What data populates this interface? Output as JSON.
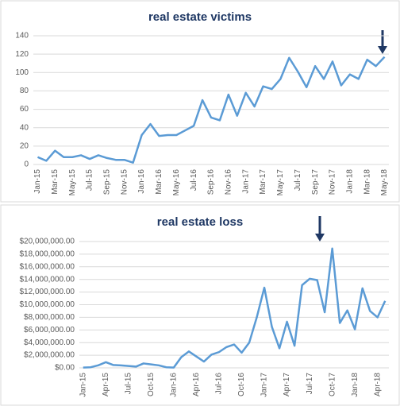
{
  "chart_data": [
    {
      "type": "line",
      "title": "real estate victims",
      "categories": [
        "Jan-15",
        null,
        "Mar-15",
        null,
        "May-15",
        null,
        "Jul-15",
        null,
        "Sep-15",
        null,
        "Nov-15",
        null,
        "Jan-16",
        null,
        "Mar-16",
        null,
        "May-16",
        null,
        "Jul-16",
        null,
        "Sep-16",
        null,
        "Nov-16",
        null,
        "Jan-17",
        null,
        "Mar-17",
        null,
        "May-17",
        null,
        "Jul-17",
        null,
        "Sep-17",
        null,
        "Nov-17",
        null,
        "Jan-18",
        null,
        "Mar-18",
        null,
        "May-18"
      ],
      "series": [
        {
          "name": "victims",
          "color": "#5b9bd5",
          "values": [
            8,
            4,
            15,
            8,
            8,
            10,
            6,
            10,
            7,
            5,
            5,
            2,
            32,
            44,
            31,
            32,
            32,
            37,
            42,
            70,
            51,
            48,
            76,
            53,
            78,
            63,
            85,
            82,
            93,
            116,
            101,
            84,
            107,
            93,
            112,
            86,
            98,
            93,
            114,
            107,
            117
          ]
        }
      ],
      "ylim": [
        0,
        140
      ],
      "yticks": [
        0,
        20,
        40,
        60,
        80,
        100,
        120,
        140
      ],
      "grid": true
    },
    {
      "type": "line",
      "title": "real estate loss",
      "categories": [
        "Jan-15",
        null,
        null,
        "Apr-15",
        null,
        null,
        "Jul-15",
        null,
        null,
        "Oct-15",
        null,
        null,
        "Jan-16",
        null,
        null,
        "Apr-16",
        null,
        null,
        "Jul-16",
        null,
        null,
        "Oct-16",
        null,
        null,
        "Jan-17",
        null,
        null,
        "Apr-17",
        null,
        null,
        "Jul-17",
        null,
        null,
        "Oct-17",
        null,
        null,
        "Jan-18",
        null,
        null,
        "Apr-18",
        null
      ],
      "series": [
        {
          "name": "loss",
          "color": "#5b9bd5",
          "values": [
            50000,
            100000,
            400000,
            900000,
            450000,
            400000,
            300000,
            200000,
            700000,
            550000,
            400000,
            100000,
            50000,
            1700000,
            2600000,
            1800000,
            1000000,
            2100000,
            2500000,
            3300000,
            3700000,
            2400000,
            4000000,
            8000000,
            12700000,
            6500000,
            3100000,
            7300000,
            3500000,
            13100000,
            14100000,
            13900000,
            8800000,
            18900000,
            7100000,
            9100000,
            6100000,
            12600000,
            9000000,
            8000000,
            10600000
          ]
        }
      ],
      "ylim": [
        0,
        20000000
      ],
      "yticks": [
        {
          "value": 0,
          "label": "$0.00"
        },
        {
          "value": 2000000,
          "label": "$2,000,000.00"
        },
        {
          "value": 4000000,
          "label": "$4,000,000.00"
        },
        {
          "value": 6000000,
          "label": "$6,000,000.00"
        },
        {
          "value": 8000000,
          "label": "$8,000,000.00"
        },
        {
          "value": 10000000,
          "label": "$10,000,000.00"
        },
        {
          "value": 12000000,
          "label": "$12,000,000.00"
        },
        {
          "value": 14000000,
          "label": "$14,000,000.00"
        },
        {
          "value": 16000000,
          "label": "$16,000,000.00"
        },
        {
          "value": 18000000,
          "label": "$18,000,000.00"
        },
        {
          "value": 20000000,
          "label": "$20,000,000.00"
        }
      ],
      "grid": true
    }
  ]
}
